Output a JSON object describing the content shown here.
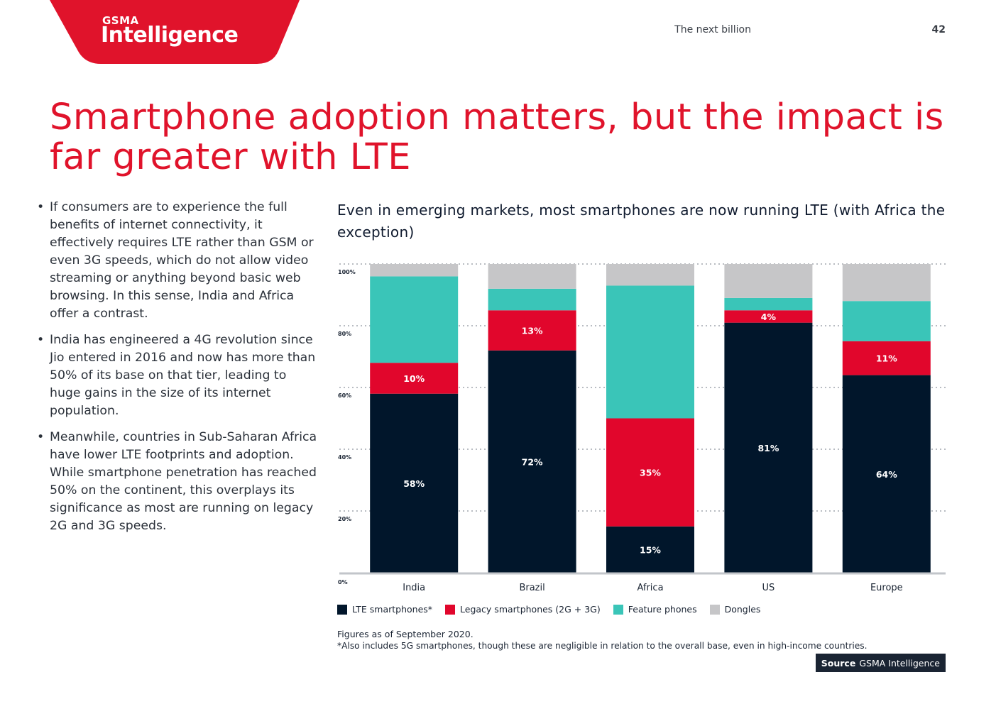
{
  "header": {
    "logo_top": "GSMA",
    "logo_main": "Intelligence",
    "section_title": "The next billion",
    "page_number": "42"
  },
  "headline": "Smartphone adoption matters, but the impact is far greater with LTE",
  "bullets": [
    "If consumers are to experience the full benefits of internet connectivity, it effectively requires LTE rather than GSM or even 3G speeds, which do not allow video streaming or anything beyond basic web browsing. In this sense, India and Africa offer a contrast.",
    "India has engineered a 4G revolution since Jio entered in 2016 and now has more than 50% of its base on that tier, leading to huge gains in the size of its internet population.",
    "Meanwhile, countries in Sub-Saharan Africa have lower LTE footprints and adoption. While smartphone penetration has reached 50% on the continent, this overplays its significance as most are running on legacy 2G and 3G speeds."
  ],
  "colors": {
    "brand_red": "#e0132b",
    "lte": "#01162b",
    "legacy": "#e1062c",
    "feature": "#3ac5b8",
    "dongles": "#c6c6c8"
  },
  "chart_data": {
    "type": "bar",
    "stacked": true,
    "title": "Even in emerging markets, most smartphones are now running LTE (with Africa the exception)",
    "categories": [
      "India",
      "Brazil",
      "Africa",
      "US",
      "Europe"
    ],
    "series": [
      {
        "name": "LTE smartphones*",
        "color": "#01162b",
        "values": [
          58,
          72,
          15,
          81,
          64
        ],
        "labels": [
          "58%",
          "72%",
          "15%",
          "81%",
          "64%"
        ]
      },
      {
        "name": "Legacy smartphones (2G + 3G)",
        "color": "#e1062c",
        "values": [
          10,
          13,
          35,
          4,
          11
        ],
        "labels": [
          "10%",
          "13%",
          "35%",
          "4%",
          "11%"
        ]
      },
      {
        "name": "Feature phones",
        "color": "#3ac5b8",
        "values": [
          28,
          7,
          43,
          4,
          13
        ],
        "labels": [
          "",
          "",
          "",
          "",
          ""
        ]
      },
      {
        "name": "Dongles",
        "color": "#c6c6c8",
        "values": [
          4,
          8,
          7,
          11,
          12
        ],
        "labels": [
          "",
          "",
          "",
          "",
          ""
        ]
      }
    ],
    "yticks": [
      "0%",
      "20%",
      "40%",
      "60%",
      "80%",
      "100%"
    ],
    "ylim": [
      0,
      100
    ],
    "grid": true,
    "legend_position": "bottom-left"
  },
  "notes": {
    "line1": "Figures as of September 2020.",
    "line2": "*Also includes 5G smartphones, though these are negligible in relation to the overall base, even in high-income countries."
  },
  "source": {
    "label": "Source",
    "value": "GSMA Intelligence"
  }
}
